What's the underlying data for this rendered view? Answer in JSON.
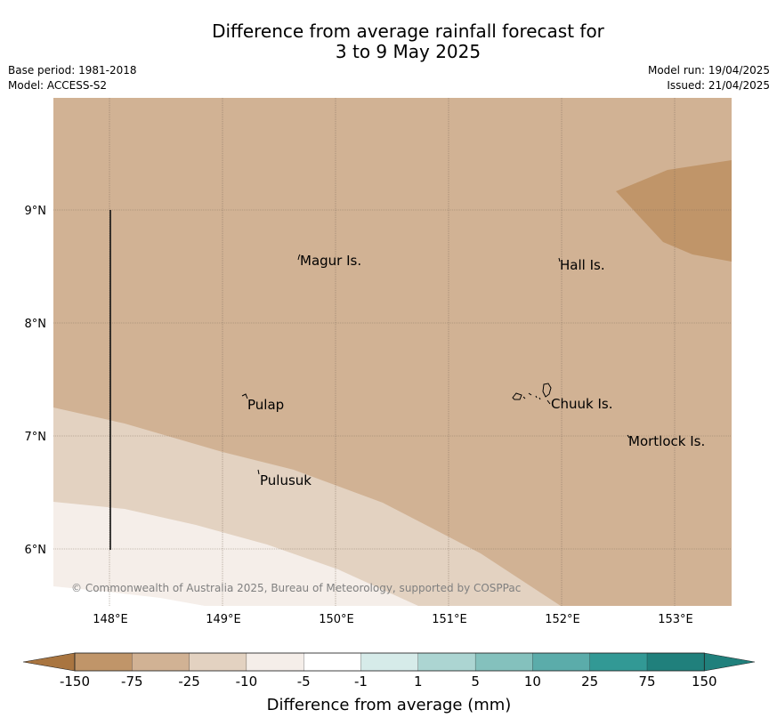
{
  "header": {
    "title_line1": "Difference from average rainfall forecast for",
    "title_line2": "3 to 9 May 2025",
    "base_period": "Base period: 1981-2018",
    "model": "Model: ACCESS-S2",
    "model_run": "Model run: 19/04/2025",
    "issued": "Issued: 21/04/2025"
  },
  "map": {
    "lat_labels": [
      "9°N",
      "8°N",
      "7°N",
      "6°N"
    ],
    "lon_labels": [
      "148°E",
      "149°E",
      "150°E",
      "151°E",
      "152°E",
      "153°E"
    ],
    "places": {
      "magur": "Magur Is.",
      "hall": "Hall Is.",
      "pulap": "Pulap",
      "chuuk": "Chuuk Is.",
      "mortlock": "Mortlock Is.",
      "pulusuk": "Pulusuk"
    },
    "copyright": "© Commonwealth of Australia 2025, Bureau of Meteorology, supported by COSPPac",
    "colors": {
      "band_m25_m10": "#d1b294",
      "band_m75_m25": "#c09569",
      "band_m10_m5": "#e3d2c1",
      "band_m5_m1": "#f5eee9"
    }
  },
  "colorbar": {
    "labels": [
      "-150",
      "-75",
      "-25",
      "-10",
      "-5",
      "-1",
      "1",
      "5",
      "10",
      "25",
      "75",
      "150"
    ],
    "colors": [
      "#a97540",
      "#c09569",
      "#d1b294",
      "#e3d2c1",
      "#f5eee9",
      "#ffffff",
      "#d6ebe9",
      "#acd5d2",
      "#84c1bd",
      "#5bacaa",
      "#329995",
      "#20807c"
    ],
    "title": "Difference from average (mm)"
  }
}
